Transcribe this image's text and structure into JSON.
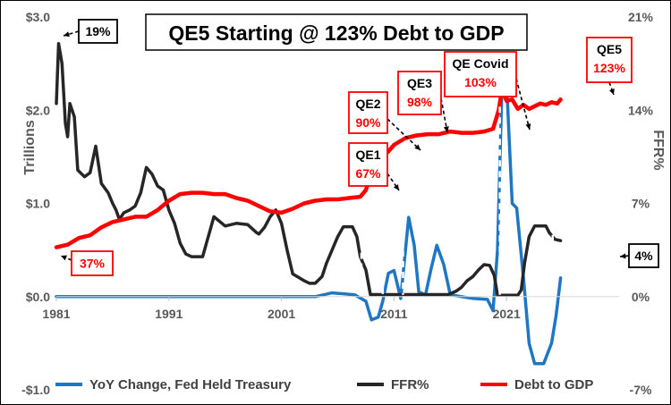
{
  "chart_data": {
    "type": "line",
    "title": "QE5 Starting @ 123% Debt to GDP",
    "ylabel_left": "Trillions",
    "ylabel_right": "FFR%",
    "x_range": [
      1981,
      2031
    ],
    "y_left_range": [
      -1.0,
      3.0
    ],
    "y_right_range": [
      -7,
      21
    ],
    "x_ticks": [
      1981,
      1991,
      2001,
      2011,
      2021
    ],
    "x_tick_labels": [
      "1981",
      "1991",
      "2001",
      "2011",
      "2021"
    ],
    "y_left_ticks": [
      -1.0,
      0.0,
      1.0,
      2.0,
      3.0
    ],
    "y_left_tick_labels": [
      "-$1.0",
      "$0.0",
      "$1.0",
      "$2.0",
      "$3.0"
    ],
    "y_right_ticks": [
      -7,
      0,
      7,
      14,
      21
    ],
    "y_right_tick_labels": [
      "-7%",
      "0%",
      "7%",
      "14%",
      "21%"
    ],
    "series": [
      {
        "name": "YoY Change, Fed Held Treasury",
        "color": "#1f77c4",
        "axis": "left",
        "points": [
          [
            1981,
            0
          ],
          [
            2004,
            0
          ],
          [
            2005.5,
            0.04
          ],
          [
            2007.5,
            0.02
          ],
          [
            2008.5,
            -0.05
          ],
          [
            2009.0,
            -0.25
          ],
          [
            2009.6,
            -0.22
          ],
          [
            2010.0,
            -0.05
          ],
          [
            2010.5,
            0.25
          ],
          [
            2011.0,
            0.28
          ],
          [
            2011.6,
            -0.02
          ],
          [
            2012.3,
            0.85
          ],
          [
            2012.8,
            0.55
          ],
          [
            2013.2,
            0.05
          ],
          [
            2013.8,
            0.02
          ],
          [
            2014.3,
            0.3
          ],
          [
            2014.8,
            0.55
          ],
          [
            2015.4,
            0.35
          ],
          [
            2016.0,
            0.02
          ],
          [
            2017.0,
            0
          ],
          [
            2018.0,
            -0.02
          ],
          [
            2019.3,
            -0.03
          ],
          [
            2019.8,
            -0.15
          ],
          [
            2020.2,
            0.5
          ],
          [
            2020.6,
            2.3
          ],
          [
            2021.0,
            2.3
          ],
          [
            2021.5,
            1.0
          ],
          [
            2021.9,
            0.95
          ],
          [
            2022.5,
            0.2
          ],
          [
            2023.0,
            -0.5
          ],
          [
            2023.5,
            -0.72
          ],
          [
            2024.3,
            -0.72
          ],
          [
            2025.0,
            -0.5
          ],
          [
            2025.4,
            -0.2
          ],
          [
            2025.8,
            0.2
          ]
        ]
      },
      {
        "name": "FFR%",
        "color": "#262626",
        "axis": "right",
        "points": [
          [
            1981,
            14.5
          ],
          [
            1981.2,
            19
          ],
          [
            1981.5,
            17.5
          ],
          [
            1981.8,
            13
          ],
          [
            1982.0,
            12
          ],
          [
            1982.2,
            14.5
          ],
          [
            1982.6,
            13.5
          ],
          [
            1982.9,
            9.5
          ],
          [
            1983.5,
            9
          ],
          [
            1984.0,
            9.3
          ],
          [
            1984.5,
            11.3
          ],
          [
            1985.0,
            8.5
          ],
          [
            1985.6,
            7.8
          ],
          [
            1986.0,
            7
          ],
          [
            1986.3,
            6.5
          ],
          [
            1986.6,
            5.8
          ],
          [
            1987.0,
            6.3
          ],
          [
            1987.5,
            6.5
          ],
          [
            1988.0,
            6.8
          ],
          [
            1988.5,
            7.8
          ],
          [
            1989.0,
            9.7
          ],
          [
            1989.5,
            9.2
          ],
          [
            1990.0,
            8.3
          ],
          [
            1990.5,
            8.0
          ],
          [
            1991.0,
            6.5
          ],
          [
            1991.5,
            5.5
          ],
          [
            1992.0,
            4.0
          ],
          [
            1992.5,
            3.2
          ],
          [
            1993.0,
            3.0
          ],
          [
            1994.0,
            3.0
          ],
          [
            1994.5,
            4.5
          ],
          [
            1995.0,
            6.0
          ],
          [
            1996.0,
            5.3
          ],
          [
            1997.0,
            5.5
          ],
          [
            1998.0,
            5.4
          ],
          [
            1998.8,
            4.8
          ],
          [
            1999.0,
            4.7
          ],
          [
            1999.5,
            5.2
          ],
          [
            2000.0,
            6.0
          ],
          [
            2000.5,
            6.5
          ],
          [
            2001.0,
            5.5
          ],
          [
            2001.5,
            3.5
          ],
          [
            2002.0,
            1.7
          ],
          [
            2003.0,
            1.2
          ],
          [
            2003.5,
            1.0
          ],
          [
            2004.0,
            1.0
          ],
          [
            2004.6,
            1.5
          ],
          [
            2005.0,
            2.5
          ],
          [
            2005.5,
            3.5
          ],
          [
            2006.0,
            4.5
          ],
          [
            2006.5,
            5.25
          ],
          [
            2007.3,
            5.25
          ],
          [
            2007.7,
            4.5
          ],
          [
            2008.0,
            3.0
          ],
          [
            2008.5,
            2.0
          ],
          [
            2008.9,
            0.15
          ],
          [
            2015.8,
            0.15
          ],
          [
            2016.5,
            0.4
          ],
          [
            2017.0,
            0.7
          ],
          [
            2017.5,
            1.2
          ],
          [
            2018.0,
            1.5
          ],
          [
            2018.5,
            2.0
          ],
          [
            2019.0,
            2.4
          ],
          [
            2019.5,
            2.35
          ],
          [
            2019.9,
            1.6
          ],
          [
            2020.2,
            0.1
          ],
          [
            2022.0,
            0.1
          ],
          [
            2022.3,
            0.5
          ],
          [
            2022.6,
            2.5
          ],
          [
            2023.0,
            4.5
          ],
          [
            2023.5,
            5.3
          ],
          [
            2024.5,
            5.3
          ],
          [
            2024.8,
            4.8
          ],
          [
            2025.3,
            4.3
          ],
          [
            2025.8,
            4.2
          ]
        ]
      },
      {
        "name": "Debt to GDP",
        "color": "#ff0000",
        "axis": "right",
        "points": [
          [
            1981,
            3.7
          ],
          [
            1982.0,
            3.9
          ],
          [
            1983.0,
            4.4
          ],
          [
            1984.0,
            4.6
          ],
          [
            1985.0,
            5.2
          ],
          [
            1986.0,
            5.6
          ],
          [
            1987.0,
            5.8
          ],
          [
            1988.0,
            6.0
          ],
          [
            1989.0,
            6.0
          ],
          [
            1990.0,
            6.5
          ],
          [
            1991.0,
            7.2
          ],
          [
            1992.0,
            7.7
          ],
          [
            1993.0,
            7.8
          ],
          [
            1994.0,
            7.8
          ],
          [
            1995.0,
            7.7
          ],
          [
            1996.0,
            7.7
          ],
          [
            1997.0,
            7.4
          ],
          [
            1998.0,
            7.2
          ],
          [
            1999.0,
            6.8
          ],
          [
            2000.0,
            6.4
          ],
          [
            2001.0,
            6.3
          ],
          [
            2002.0,
            6.6
          ],
          [
            2003.0,
            7.0
          ],
          [
            2004.0,
            7.2
          ],
          [
            2005.0,
            7.3
          ],
          [
            2006.0,
            7.3
          ],
          [
            2007.0,
            7.4
          ],
          [
            2008.0,
            7.5
          ],
          [
            2008.5,
            8.0
          ],
          [
            2009.0,
            9.4
          ],
          [
            2010.0,
            10.6
          ],
          [
            2010.5,
            10.9
          ],
          [
            2011.0,
            11.4
          ],
          [
            2012.0,
            11.9
          ],
          [
            2013.0,
            12.1
          ],
          [
            2014.0,
            12.2
          ],
          [
            2015.0,
            12.2
          ],
          [
            2016.0,
            12.4
          ],
          [
            2017.0,
            12.3
          ],
          [
            2018.0,
            12.3
          ],
          [
            2019.0,
            12.4
          ],
          [
            2019.8,
            12.6
          ],
          [
            2020.3,
            14.0
          ],
          [
            2020.6,
            15.6
          ],
          [
            2021.0,
            14.7
          ],
          [
            2021.5,
            14.8
          ],
          [
            2022.0,
            14.1
          ],
          [
            2022.5,
            14.4
          ],
          [
            2023.0,
            14.1
          ],
          [
            2023.5,
            14.3
          ],
          [
            2024.0,
            14.5
          ],
          [
            2024.5,
            14.4
          ],
          [
            2025.0,
            14.6
          ],
          [
            2025.5,
            14.5
          ],
          [
            2025.8,
            14.8
          ]
        ]
      }
    ],
    "vlines": [
      2008.1,
      2010.0,
      2011.8,
      2020.4,
      2025.1
    ],
    "annotations": [
      {
        "id": "ann-19pct",
        "lines": [
          "19%"
        ],
        "color": "#000000",
        "box_fill": "#ffffff",
        "box_stroke": "#000000",
        "x": 1981.3,
        "y_right": 19.1
      },
      {
        "id": "ann-37pct",
        "lines": [
          "37%"
        ],
        "color": "#ff0000",
        "box_fill": "#ffffff",
        "box_stroke": "#ff0000",
        "x": 1981.2,
        "y_right": 3.1
      },
      {
        "id": "ann-qe1",
        "lines": [
          "QE1",
          "67%"
        ],
        "color_lines": [
          "#000000",
          "#ff0000"
        ],
        "box_fill": "#ffffff",
        "box_stroke": "#ff0000",
        "x": 2008.2,
        "y_right": 8.5
      },
      {
        "id": "ann-qe2",
        "lines": [
          "QE2",
          "90%"
        ],
        "color_lines": [
          "#000000",
          "#ff0000"
        ],
        "box_fill": "#ffffff",
        "box_stroke": "#ff0000",
        "x": 2010.0,
        "y_right": 10.9
      },
      {
        "id": "ann-qe3",
        "lines": [
          "QE3",
          "98%"
        ],
        "color_lines": [
          "#000000",
          "#ff0000"
        ],
        "box_fill": "#ffffff",
        "box_stroke": "#ff0000",
        "x": 2011.8,
        "y_right": 11.9
      },
      {
        "id": "ann-qe-covid",
        "lines": [
          "QE Covid",
          "103%"
        ],
        "color_lines": [
          "#000000",
          "#ff0000"
        ],
        "box_fill": "#ffffff",
        "box_stroke": "#ff0000",
        "x": 2020.4,
        "y_right": 12.7
      },
      {
        "id": "ann-qe5",
        "lines": [
          "QE5",
          "123%"
        ],
        "color_lines": [
          "#000000",
          "#ff0000"
        ],
        "box_fill": "#ffffff",
        "box_stroke": "#ff0000",
        "x": 2025.1,
        "y_right": 14.7
      },
      {
        "id": "ann-4pct",
        "lines": [
          "4%"
        ],
        "color": "#000000",
        "box_fill": "#ffffff",
        "box_stroke": "#000000",
        "x": 2025.6,
        "y_right": 3.0
      }
    ],
    "legend": [
      {
        "label": "YoY Change, Fed Held Treasury",
        "color": "#1f77c4"
      },
      {
        "label": "FFR%",
        "color": "#262626"
      },
      {
        "label": "Debt to GDP",
        "color": "#ff0000"
      }
    ],
    "legend_position": "bottom"
  }
}
